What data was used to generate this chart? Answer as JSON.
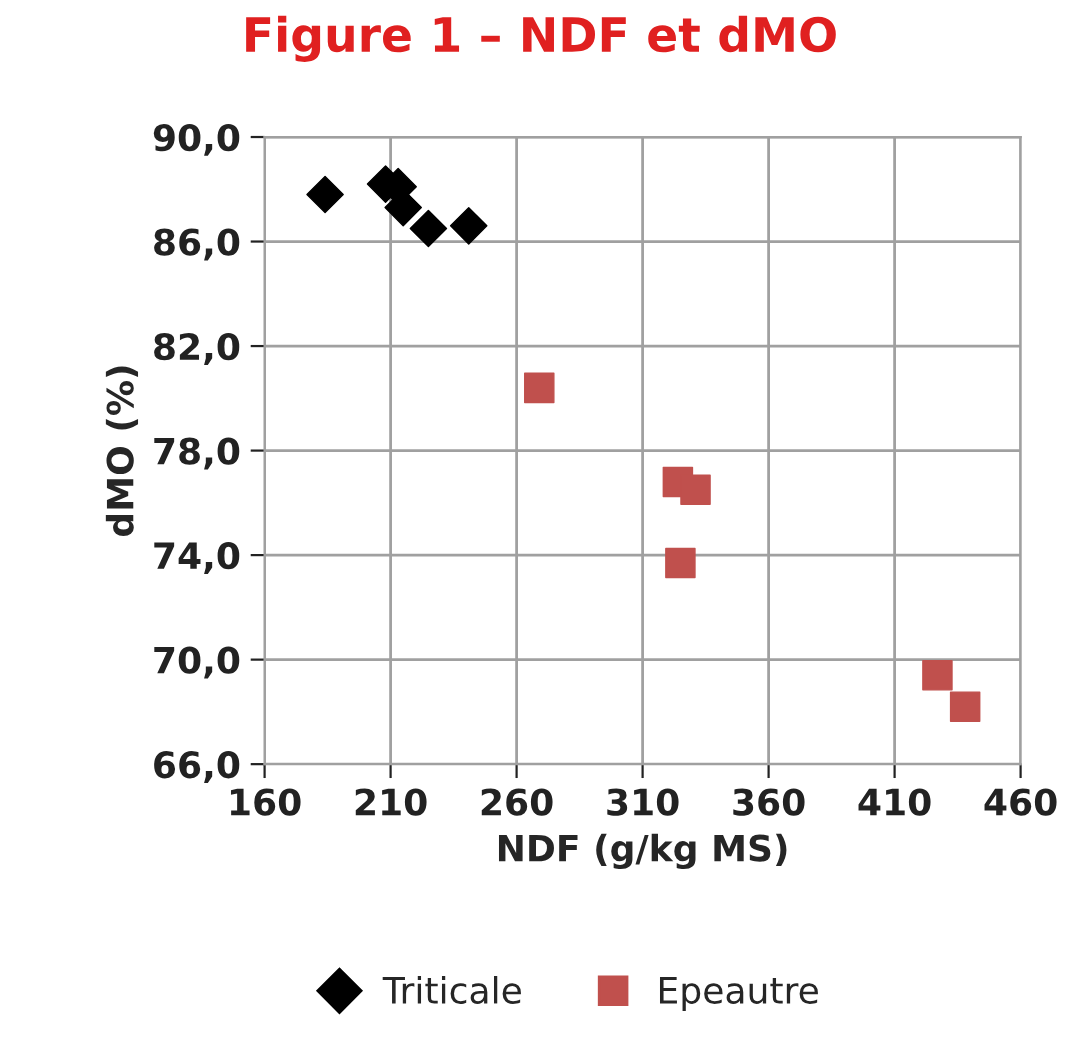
{
  "chart_data": {
    "type": "scatter",
    "title": "Figure 1 – NDF et dMO",
    "xlabel": "NDF (g/kg MS)",
    "ylabel": "dMO (%)",
    "xlim": [
      160,
      460
    ],
    "xticks": [
      160,
      210,
      260,
      310,
      360,
      410,
      460
    ],
    "ylim": [
      66,
      90
    ],
    "yticks": [
      {
        "value": 66,
        "label": "66,0"
      },
      {
        "value": 70,
        "label": "70,0"
      },
      {
        "value": 74,
        "label": "74,0"
      },
      {
        "value": 78,
        "label": "78,0"
      },
      {
        "value": 82,
        "label": "82,0"
      },
      {
        "value": 86,
        "label": "86,0"
      },
      {
        "value": 90,
        "label": "90,0"
      }
    ],
    "grid": true,
    "legend": "bottom",
    "series": [
      {
        "name": "Triticale",
        "color": "#000000",
        "marker": "diamond",
        "x": [
          184,
          208,
          213,
          215,
          225,
          241
        ],
        "values": [
          87.8,
          88.2,
          88.1,
          87.3,
          86.5,
          86.6
        ]
      },
      {
        "name": "Epeautre",
        "color": "#c0504d",
        "marker": "square",
        "x": [
          269,
          324,
          331,
          325,
          427,
          438
        ],
        "values": [
          80.4,
          76.8,
          76.5,
          73.7,
          69.4,
          68.2
        ]
      }
    ]
  }
}
